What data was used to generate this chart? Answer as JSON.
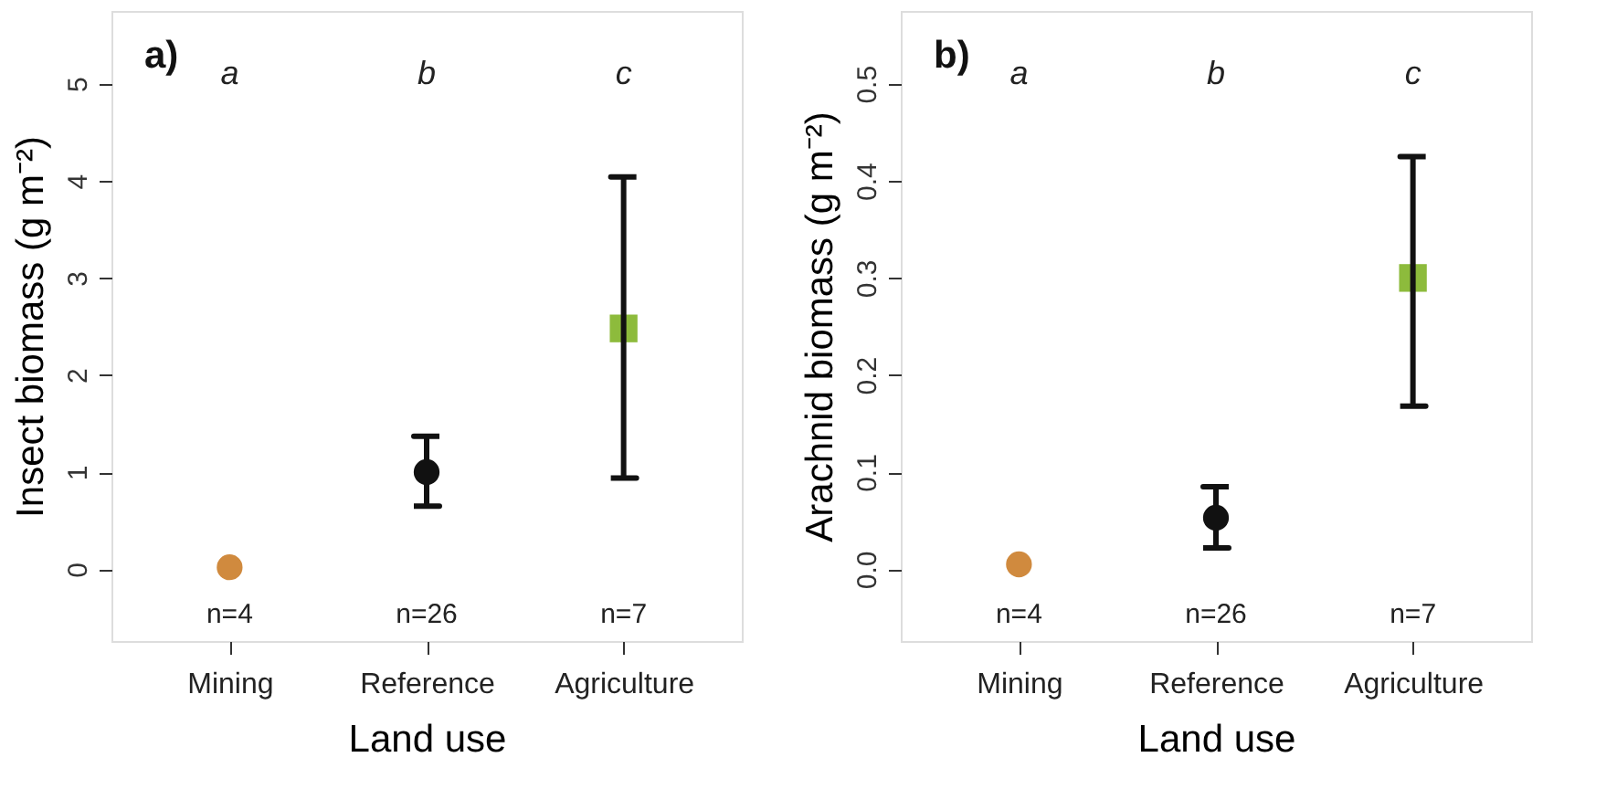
{
  "chart_data": [
    {
      "type": "scatter",
      "categories": [
        "Mining",
        "Reference",
        "Agriculture"
      ],
      "xlabel": "Land use",
      "ylabel": "Insect biomass (g m⁻²)",
      "ylim": [
        -0.74,
        5.75
      ],
      "yticks": [
        0,
        1,
        2,
        3,
        4,
        5
      ],
      "grid": false,
      "series": [
        {
          "color": "#d08a3e",
          "marker": "circle",
          "values": [
            0.02,
            null,
            null
          ],
          "errors": [
            null,
            null,
            null
          ]
        },
        {
          "color": "#111111",
          "marker": "circle",
          "values": [
            null,
            1.0,
            null
          ],
          "errors": [
            null,
            [
              0.65,
              1.37
            ],
            null
          ]
        },
        {
          "color": "#8dbb3c",
          "marker": "square",
          "values": [
            null,
            null,
            2.48
          ],
          "errors": [
            null,
            null,
            [
              0.94,
              4.04
            ]
          ]
        }
      ],
      "annotations": [
        "a)",
        "a",
        "b",
        "c",
        "n=4",
        "n=26",
        "n=7"
      ]
    },
    {
      "type": "scatter",
      "categories": [
        "Mining",
        "Reference",
        "Agriculture"
      ],
      "xlabel": "Land use",
      "ylabel": "Arachnid biomass (g m⁻²)",
      "ylim": [
        -0.074,
        0.575
      ],
      "yticks": [
        {
          "value": 0,
          "label": "0.0"
        },
        0.1,
        0.2,
        0.3,
        0.4,
        0.5
      ],
      "grid": false,
      "series": [
        {
          "color": "#d08a3e",
          "marker": "circle",
          "values": [
            0.005,
            null,
            null
          ],
          "errors": [
            null,
            null,
            null
          ]
        },
        {
          "color": "#111111",
          "marker": "circle",
          "values": [
            null,
            0.053,
            null
          ],
          "errors": [
            null,
            [
              0.022,
              0.085
            ],
            null
          ]
        },
        {
          "color": "#8dbb3c",
          "marker": "square",
          "values": [
            null,
            null,
            0.3
          ],
          "errors": [
            null,
            null,
            [
              0.168,
              0.425
            ]
          ]
        }
      ],
      "annotations": [
        "b)",
        "a",
        "b",
        "c",
        "n=4",
        "n=26",
        "n=7"
      ]
    }
  ]
}
